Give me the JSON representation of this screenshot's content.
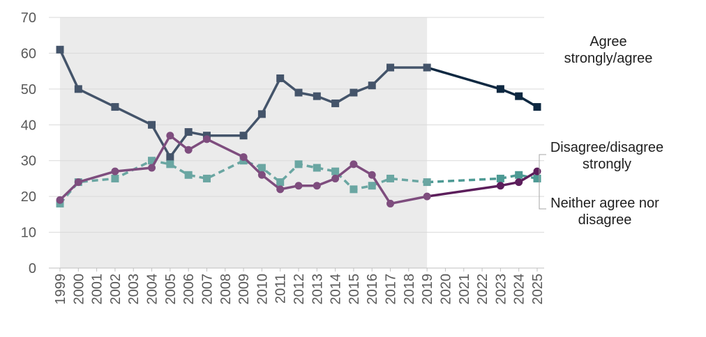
{
  "chart_data": {
    "type": "line",
    "x": [
      "1999",
      "2000",
      "2001",
      "2002",
      "2003",
      "2004",
      "2005",
      "2006",
      "2007",
      "2008",
      "2009",
      "2010",
      "2011",
      "2012",
      "2013",
      "2014",
      "2015",
      "2016",
      "2017",
      "2018",
      "2019",
      "2020",
      "2021",
      "2022",
      "2023",
      "2024",
      "2025"
    ],
    "ylim": [
      0,
      70
    ],
    "yticks": [
      0,
      10,
      20,
      30,
      40,
      50,
      60,
      70
    ],
    "grid": true,
    "shaded_region": {
      "from": "1999",
      "to": "2019",
      "color": "#ebebeb"
    },
    "series": [
      {
        "name": "Agree strongly/agree",
        "legend_lines": [
          "Agree",
          "strongly/agree"
        ],
        "color_early": "#44546a",
        "color_late": "#0e2841",
        "marker": "square",
        "dashed": false,
        "points": [
          [
            "1999",
            61
          ],
          [
            "2000",
            50
          ],
          [
            "2002",
            45
          ],
          [
            "2004",
            40
          ],
          [
            "2005",
            31
          ],
          [
            "2006",
            38
          ],
          [
            "2007",
            37
          ],
          [
            "2009",
            37
          ],
          [
            "2010",
            43
          ],
          [
            "2011",
            53
          ],
          [
            "2012",
            49
          ],
          [
            "2013",
            48
          ],
          [
            "2014",
            46
          ],
          [
            "2015",
            49
          ],
          [
            "2016",
            51
          ],
          [
            "2017",
            56
          ],
          [
            "2019",
            56
          ],
          [
            "2023",
            50
          ],
          [
            "2024",
            48
          ],
          [
            "2025",
            45
          ]
        ]
      },
      {
        "name": "Disagree/disagree strongly",
        "legend_lines": [
          "Disagree/disagree",
          "strongly"
        ],
        "color_early": "#6aa6a2",
        "color_late": "#4d9a94",
        "marker": "square",
        "dashed": true,
        "points": [
          [
            "1999",
            18
          ],
          [
            "2000",
            24
          ],
          [
            "2002",
            25
          ],
          [
            "2004",
            30
          ],
          [
            "2005",
            29
          ],
          [
            "2006",
            26
          ],
          [
            "2007",
            25
          ],
          [
            "2009",
            30
          ],
          [
            "2010",
            28
          ],
          [
            "2011",
            24
          ],
          [
            "2012",
            29
          ],
          [
            "2013",
            28
          ],
          [
            "2014",
            27
          ],
          [
            "2015",
            22
          ],
          [
            "2016",
            23
          ],
          [
            "2017",
            25
          ],
          [
            "2019",
            24
          ],
          [
            "2023",
            25
          ],
          [
            "2024",
            26
          ],
          [
            "2025",
            25
          ]
        ]
      },
      {
        "name": "Neither agree nor disagree",
        "legend_lines": [
          "Neither agree nor",
          "disagree"
        ],
        "color_early": "#7e4d7e",
        "color_late": "#5c1e5b",
        "marker": "circle",
        "dashed": false,
        "points": [
          [
            "1999",
            19
          ],
          [
            "2000",
            24
          ],
          [
            "2002",
            27
          ],
          [
            "2004",
            28
          ],
          [
            "2005",
            37
          ],
          [
            "2006",
            33
          ],
          [
            "2007",
            36
          ],
          [
            "2009",
            31
          ],
          [
            "2010",
            26
          ],
          [
            "2011",
            22
          ],
          [
            "2012",
            23
          ],
          [
            "2013",
            23
          ],
          [
            "2014",
            25
          ],
          [
            "2015",
            29
          ],
          [
            "2016",
            26
          ],
          [
            "2017",
            18
          ],
          [
            "2019",
            20
          ],
          [
            "2023",
            23
          ],
          [
            "2024",
            24
          ],
          [
            "2025",
            27
          ]
        ]
      }
    ]
  }
}
